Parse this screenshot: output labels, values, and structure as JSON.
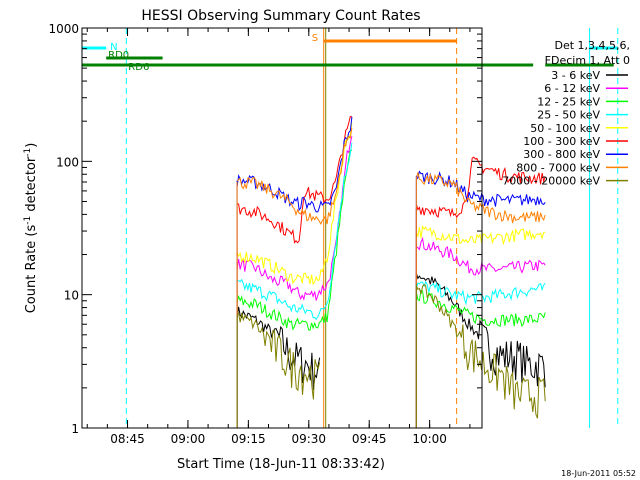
{
  "chart_data": {
    "type": "line",
    "title": "HESSI Observing Summary Count Rates",
    "xlabel": "Start Time (18-Jun-11 08:33:42)",
    "ylabel_prefix": "Count Rate (s",
    "ylabel_sup1": "-1",
    "ylabel_mid": " detector",
    "ylabel_sup2": "-1",
    "ylabel_suffix": ")",
    "ylog": true,
    "ylim": [
      1,
      1000
    ],
    "xlim": [
      "08:33:42",
      "10:13:00"
    ],
    "x_ticks": [
      "08:45",
      "09:00",
      "09:15",
      "09:30",
      "09:45",
      "10:00"
    ],
    "y_ticks": [
      "1",
      "10",
      "100",
      "1000"
    ],
    "timestamp": "18-Jun-2011 05:52",
    "legend_header": [
      "Det 1,3,4,5,6,",
      "FDecim 1, Att 0"
    ],
    "series": [
      {
        "name": "3 - 6 keV",
        "color": "#000000",
        "seg1": [
          [
            38.5,
            7.5
          ],
          [
            43,
            6.5
          ],
          [
            48,
            5.0
          ],
          [
            52,
            3.5
          ],
          [
            56,
            3.0
          ],
          [
            59,
            2.6
          ]
        ],
        "seg2": [
          [
            83,
            14.5
          ],
          [
            88,
            12.0
          ],
          [
            92,
            9.0
          ],
          [
            96,
            6.0
          ],
          [
            100,
            4.5
          ],
          [
            104,
            3.5
          ],
          [
            108,
            3.5
          ],
          [
            111,
            3.0
          ],
          [
            115,
            3.0
          ]
        ]
      },
      {
        "name": "6 - 12 keV",
        "color": "#ff00ff",
        "seg1": [
          [
            38.5,
            17
          ],
          [
            43,
            16
          ],
          [
            47,
            13
          ],
          [
            51,
            12
          ],
          [
            54,
            10
          ],
          [
            58,
            10
          ],
          [
            61,
            12
          ],
          [
            63,
            22
          ],
          [
            64,
            40
          ],
          [
            65,
            70
          ],
          [
            66,
            120
          ],
          [
            67,
            170
          ]
        ],
        "seg2": [
          [
            83,
            25
          ],
          [
            88,
            22
          ],
          [
            92,
            20
          ],
          [
            96,
            16
          ],
          [
            100,
            15.5
          ],
          [
            104,
            15.5
          ],
          [
            108,
            16
          ],
          [
            112,
            16.5
          ],
          [
            115,
            16.5
          ]
        ]
      },
      {
        "name": "12 - 25 keV",
        "color": "#00ff00",
        "seg1": [
          [
            38.5,
            9
          ],
          [
            43,
            8.5
          ],
          [
            48,
            7
          ],
          [
            52,
            6
          ],
          [
            56,
            6
          ],
          [
            59,
            6
          ],
          [
            61,
            7
          ],
          [
            63,
            20
          ],
          [
            65,
            60
          ],
          [
            67,
            130
          ]
        ],
        "seg2": [
          [
            83,
            10
          ],
          [
            88,
            9
          ],
          [
            92,
            8
          ],
          [
            96,
            7
          ],
          [
            100,
            6.5
          ],
          [
            104,
            6.5
          ],
          [
            108,
            6.5
          ],
          [
            112,
            6.5
          ],
          [
            115,
            6.8
          ]
        ]
      },
      {
        "name": "25 - 50 keV",
        "color": "#00ffff",
        "seg1": [
          [
            38.5,
            12
          ],
          [
            43,
            11
          ],
          [
            48,
            9.5
          ],
          [
            52,
            8
          ],
          [
            56,
            7.5
          ],
          [
            59,
            7
          ],
          [
            61,
            9
          ],
          [
            63,
            25
          ],
          [
            65,
            70
          ],
          [
            67,
            140
          ]
        ],
        "seg2": [
          [
            83,
            12
          ],
          [
            88,
            11
          ],
          [
            92,
            10
          ],
          [
            96,
            9.5
          ],
          [
            100,
            9.5
          ],
          [
            104,
            10
          ],
          [
            108,
            10.5
          ],
          [
            112,
            11
          ],
          [
            115,
            11
          ]
        ]
      },
      {
        "name": "50 - 100 keV",
        "color": "#ffff00",
        "seg1": [
          [
            38.5,
            20
          ],
          [
            43,
            19
          ],
          [
            48,
            16
          ],
          [
            52,
            13.5
          ],
          [
            56,
            13
          ],
          [
            59,
            13
          ],
          [
            61,
            20
          ],
          [
            63,
            50
          ],
          [
            65,
            120
          ],
          [
            67,
            190
          ]
        ],
        "seg2": [
          [
            83,
            30
          ],
          [
            88,
            29
          ],
          [
            92,
            27
          ],
          [
            96,
            25
          ],
          [
            100,
            26
          ],
          [
            104,
            27
          ],
          [
            108,
            28
          ],
          [
            112,
            29
          ],
          [
            115,
            30
          ]
        ]
      },
      {
        "name": "100 - 300 keV",
        "color": "#ff0000",
        "seg1": [
          [
            38.5,
            45
          ],
          [
            43,
            42
          ],
          [
            48,
            35
          ],
          [
            52,
            28
          ],
          [
            54,
            26
          ],
          [
            55,
            60
          ],
          [
            58,
            55
          ],
          [
            61,
            52
          ],
          [
            63,
            70
          ],
          [
            65,
            140
          ],
          [
            67,
            220
          ]
        ],
        "seg2": [
          [
            83,
            45
          ],
          [
            88,
            43
          ],
          [
            92,
            40
          ],
          [
            95,
            48
          ],
          [
            97,
            100
          ],
          [
            99,
            92
          ],
          [
            102,
            85
          ],
          [
            106,
            78
          ],
          [
            110,
            76
          ],
          [
            113,
            75
          ],
          [
            115,
            75
          ]
        ]
      },
      {
        "name": "300 - 800 keV",
        "color": "#0000ff",
        "seg1": [
          [
            38.5,
            72
          ],
          [
            43,
            70
          ],
          [
            48,
            60
          ],
          [
            52,
            50
          ],
          [
            54,
            48
          ],
          [
            55,
            50
          ],
          [
            58,
            46
          ],
          [
            61,
            45
          ],
          [
            63,
            60
          ],
          [
            65,
            130
          ],
          [
            67,
            200
          ]
        ],
        "seg2": [
          [
            83,
            78
          ],
          [
            88,
            75
          ],
          [
            92,
            70
          ],
          [
            96,
            55
          ],
          [
            100,
            52
          ],
          [
            104,
            51
          ],
          [
            108,
            51
          ],
          [
            112,
            52
          ],
          [
            115,
            53
          ]
        ]
      },
      {
        "name": "800 - 7000 keV",
        "color": "#ff8000",
        "seg1": [
          [
            38.5,
            70
          ],
          [
            43,
            68
          ],
          [
            48,
            58
          ],
          [
            52,
            48
          ],
          [
            54,
            42
          ],
          [
            55,
            40
          ],
          [
            58,
            37
          ],
          [
            61,
            37
          ],
          [
            63,
            55
          ],
          [
            65,
            120
          ],
          [
            67,
            180
          ]
        ],
        "seg2": [
          [
            83,
            75
          ],
          [
            88,
            72
          ],
          [
            92,
            68
          ],
          [
            96,
            48
          ],
          [
            100,
            43
          ],
          [
            104,
            40
          ],
          [
            108,
            38
          ],
          [
            112,
            38
          ],
          [
            115,
            39
          ]
        ]
      },
      {
        "name": "7000 - 20000 keV",
        "color": "#808000",
        "seg1": [
          [
            38.5,
            7
          ],
          [
            43,
            6
          ],
          [
            48,
            4
          ],
          [
            52,
            3
          ],
          [
            56,
            2.6
          ],
          [
            59,
            2.4
          ]
        ],
        "seg2": [
          [
            83,
            12
          ],
          [
            88,
            9
          ],
          [
            92,
            6
          ],
          [
            96,
            4
          ],
          [
            100,
            3
          ],
          [
            104,
            2.5
          ],
          [
            108,
            1.8
          ],
          [
            112,
            1.8
          ],
          [
            115,
            1.8
          ]
        ]
      }
    ],
    "state_bars": [
      {
        "label": "N",
        "color": "#00ffff",
        "ranges": [
          [
            0,
            6
          ],
          [
            126,
            133
          ]
        ],
        "level": "top"
      },
      {
        "label": "S",
        "color": "#ff8000",
        "ranges": [
          [
            60,
            93
          ]
        ],
        "level": "upper"
      },
      {
        "label": "RD0",
        "color": "#008000",
        "ranges": [
          [
            6,
            20
          ]
        ],
        "level": "mid"
      },
      {
        "label": "RD6",
        "color": "#008000",
        "ranges": [
          [
            0,
            112
          ],
          [
            115,
            132
          ]
        ],
        "level": "low"
      }
    ],
    "vlines": [
      {
        "x": 11,
        "color": "#00ffff",
        "dash": true
      },
      {
        "x": 60,
        "color": "#ff8000",
        "dash": false
      },
      {
        "x": 60.5,
        "color": "#808000",
        "dash": false
      },
      {
        "x": 93,
        "color": "#ff8000",
        "dash": true
      },
      {
        "x": 126,
        "color": "#00ffff",
        "dash": false
      },
      {
        "x": 133,
        "color": "#00ffff",
        "dash": true
      }
    ],
    "grid": false
  }
}
